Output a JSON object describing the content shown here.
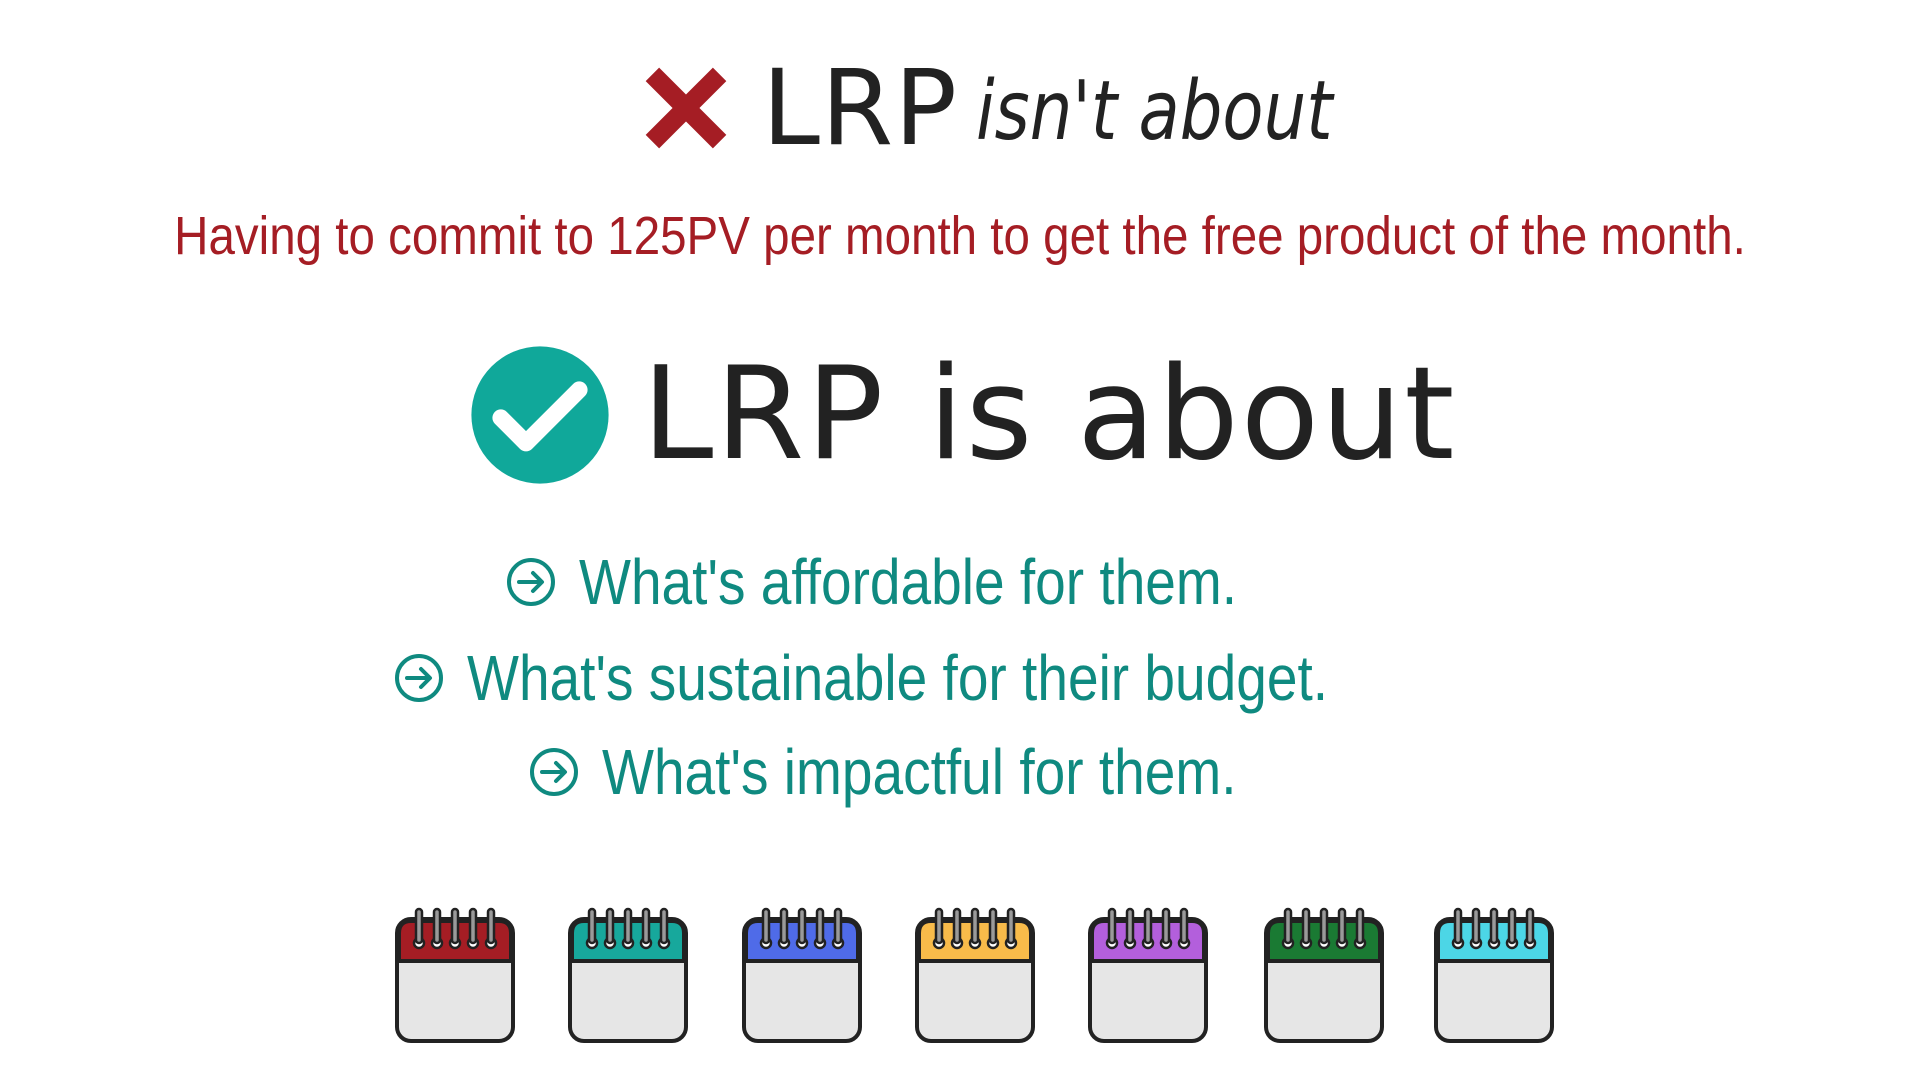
{
  "heading_negative": {
    "icon": "x-mark-icon",
    "icon_color": "#a51d24",
    "brand": "LRP",
    "text": "isn't about"
  },
  "negative_statement": "Having to commit to 125PV per month to get the free product of the month.",
  "heading_positive": {
    "icon": "check-circle-icon",
    "icon_color": "#10a89a",
    "text": "LRP is about"
  },
  "bullets": [
    {
      "icon": "arrow-circle-right-icon",
      "text": "What's affordable for them."
    },
    {
      "icon": "arrow-circle-right-icon",
      "text": "What's sustainable for their budget."
    },
    {
      "icon": "arrow-circle-right-icon",
      "text": "What's impactful for them."
    }
  ],
  "colors": {
    "negative_text": "#a51d24",
    "positive_text": "#0f8a80",
    "heading_text": "#222222"
  },
  "calendars": [
    {
      "icon": "calendar-icon",
      "color": "#a51d24"
    },
    {
      "icon": "calendar-icon",
      "color": "#17a89c"
    },
    {
      "icon": "calendar-icon",
      "color": "#4f6be8"
    },
    {
      "icon": "calendar-icon",
      "color": "#f8bb4a"
    },
    {
      "icon": "calendar-icon",
      "color": "#b35fdc"
    },
    {
      "icon": "calendar-icon",
      "color": "#1a7a33"
    },
    {
      "icon": "calendar-icon",
      "color": "#4cd6e6"
    }
  ]
}
